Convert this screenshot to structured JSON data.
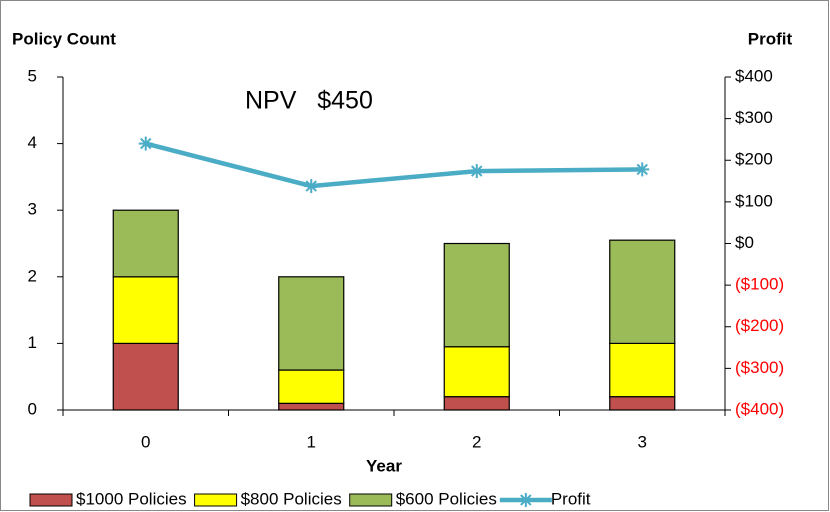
{
  "chart_data": {
    "type": "bar_line_combo",
    "y_label": "Policy Count",
    "y2_label": "Profit",
    "x_label": "Year",
    "annotation": "NPV   $450",
    "categories": [
      "0",
      "1",
      "2",
      "3"
    ],
    "series": [
      {
        "name": "$1000 Policies",
        "type": "bar",
        "color": "#c0504d",
        "values": [
          1,
          0.1,
          0.2,
          0.2
        ]
      },
      {
        "name": "$800 Policies",
        "type": "bar",
        "color": "#ffff00",
        "values": [
          1,
          0.5,
          0.75,
          0.8
        ]
      },
      {
        "name": "$600 Policies",
        "type": "bar",
        "color": "#9bbb59",
        "values": [
          1,
          1.4,
          1.55,
          1.55
        ]
      },
      {
        "name": "Profit",
        "type": "line",
        "axis": "y2",
        "color": "#4bacc6",
        "values": [
          240,
          138,
          174,
          178
        ]
      }
    ],
    "ylim": [
      0,
      5
    ],
    "yticks": [
      0,
      1,
      2,
      3,
      4,
      5
    ],
    "y2lim": [
      -400,
      400
    ],
    "y2ticks": [
      {
        "value": -400,
        "label": "($400)"
      },
      {
        "value": -300,
        "label": "($300)"
      },
      {
        "value": -200,
        "label": "($200)"
      },
      {
        "value": -100,
        "label": "($100)"
      },
      {
        "value": 0,
        "label": "$0"
      },
      {
        "value": 100,
        "label": "$100"
      },
      {
        "value": 200,
        "label": "$200"
      },
      {
        "value": 300,
        "label": "$300"
      },
      {
        "value": 400,
        "label": "$400"
      }
    ],
    "negative_tick_color": "#ff0000",
    "legend": "bottom"
  }
}
